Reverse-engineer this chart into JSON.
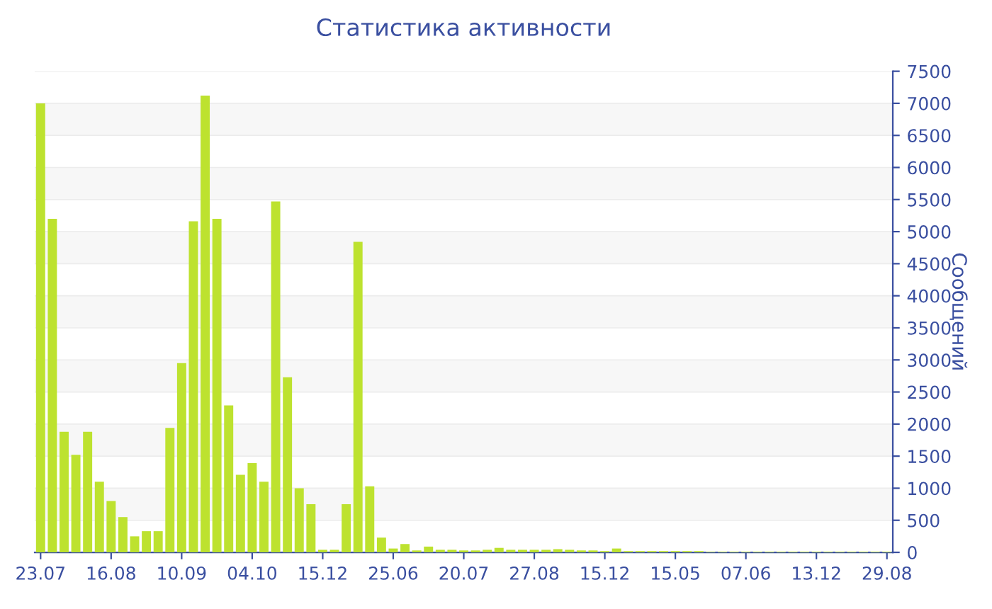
{
  "chart_data": {
    "type": "bar",
    "title": "Статистика активности",
    "ylabel": "Сообщений",
    "categories": [
      "23.07",
      null,
      null,
      null,
      null,
      null,
      "16.08",
      null,
      null,
      null,
      null,
      null,
      "10.09",
      null,
      null,
      null,
      null,
      null,
      "04.10",
      null,
      null,
      null,
      null,
      null,
      "15.12",
      null,
      null,
      null,
      null,
      null,
      "25.06",
      null,
      null,
      null,
      null,
      null,
      "20.07",
      null,
      null,
      null,
      null,
      null,
      "27.08",
      null,
      null,
      null,
      null,
      null,
      "15.12",
      null,
      null,
      null,
      null,
      null,
      "15.05",
      null,
      null,
      null,
      null,
      null,
      "07.06",
      null,
      null,
      null,
      null,
      null,
      "13.12",
      null,
      null,
      null,
      null,
      null,
      "29.08"
    ],
    "values": [
      7000,
      5200,
      1880,
      1520,
      1880,
      1100,
      800,
      550,
      250,
      330,
      330,
      1940,
      2950,
      5160,
      7120,
      5200,
      2290,
      1210,
      1390,
      1100,
      5470,
      2730,
      1000,
      750,
      40,
      40,
      750,
      4840,
      1030,
      230,
      60,
      130,
      30,
      90,
      40,
      40,
      30,
      30,
      40,
      70,
      40,
      40,
      40,
      40,
      50,
      40,
      30,
      30,
      20,
      60,
      20,
      20,
      20,
      20,
      20,
      20,
      20,
      10,
      10,
      10,
      10,
      10,
      10,
      10,
      10,
      10,
      10,
      10,
      10,
      10,
      10,
      10,
      10
    ],
    "color": "#bde22f",
    "ylim": [
      0,
      7500
    ],
    "yticks": [
      0,
      500,
      1000,
      1500,
      2000,
      2500,
      3000,
      3500,
      4000,
      4500,
      5000,
      5500,
      6000,
      6500,
      7000,
      7500
    ],
    "grid": "y",
    "legend": false
  }
}
